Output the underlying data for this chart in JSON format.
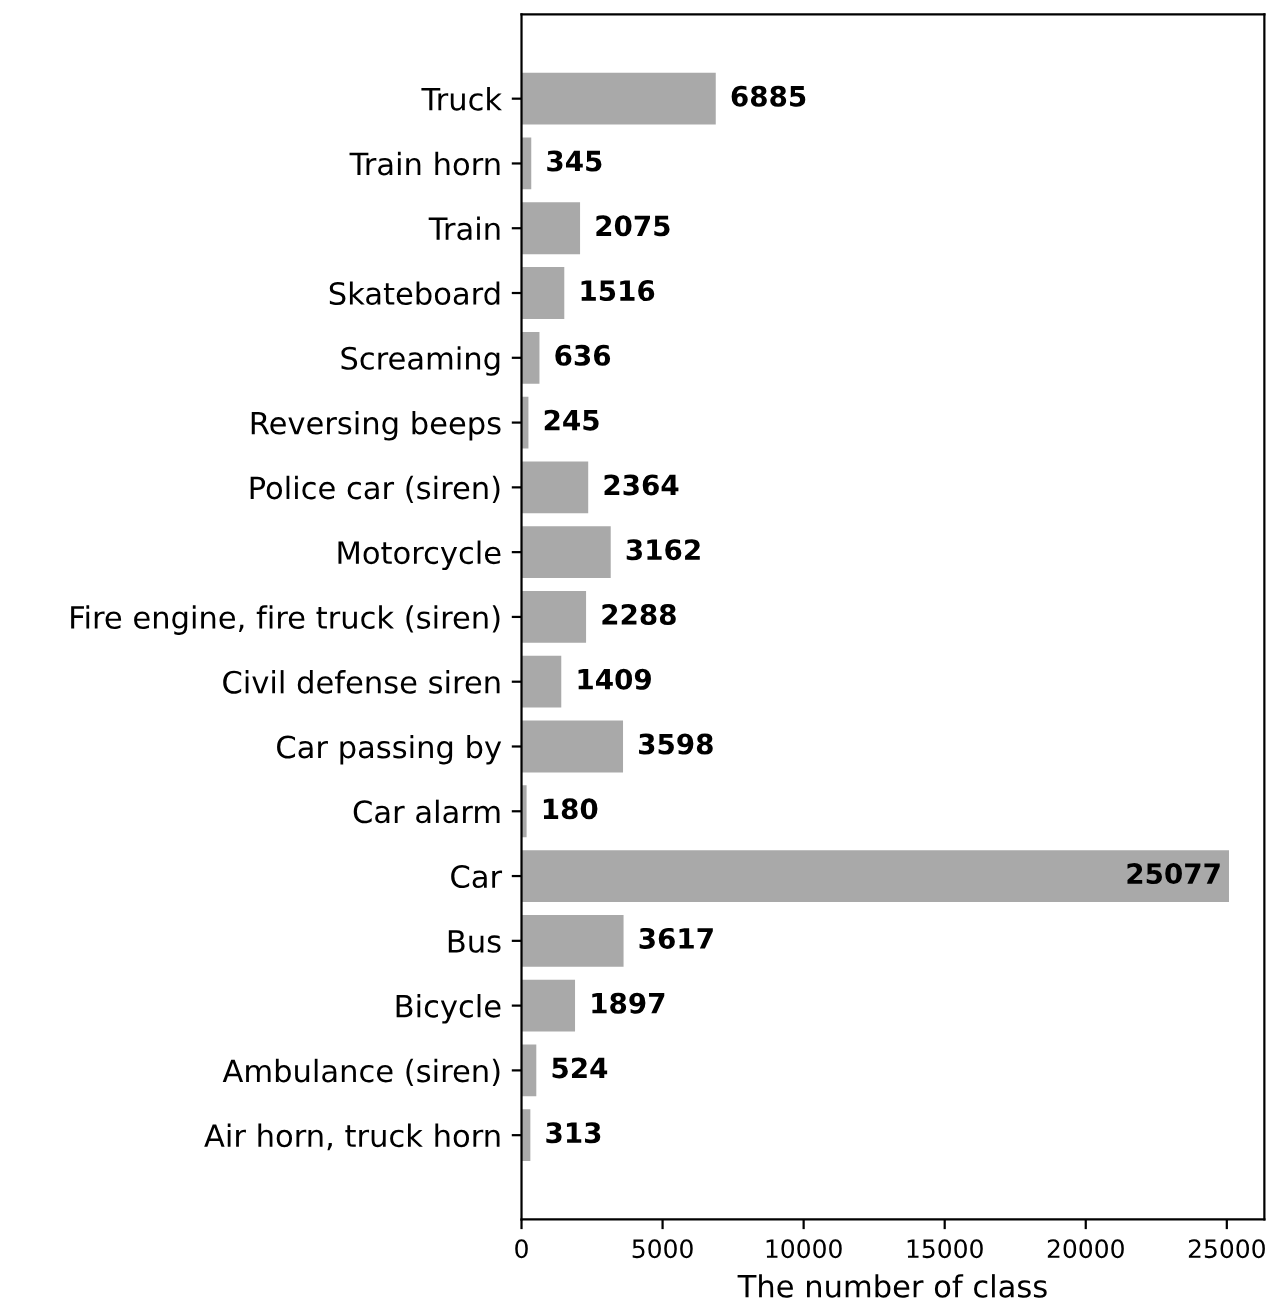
{
  "chart_data": {
    "type": "bar",
    "orientation": "horizontal",
    "xlabel": "The number of class",
    "categories": [
      "Truck",
      "Train horn",
      "Train",
      "Skateboard",
      "Screaming",
      "Reversing beeps",
      "Police car (siren)",
      "Motorcycle",
      "Fire engine, fire truck (siren)",
      "Civil defense siren",
      "Car passing by",
      "Car alarm",
      "Car",
      "Bus",
      "Bicycle",
      "Ambulance (siren)",
      "Air horn, truck horn"
    ],
    "values": [
      6885,
      345,
      2075,
      1516,
      636,
      245,
      2364,
      3162,
      2288,
      1409,
      3598,
      180,
      25077,
      3617,
      1897,
      524,
      313
    ],
    "color": "#a9a9a9",
    "data_labels": true,
    "grid": false,
    "xlim": [
      0,
      26331
    ],
    "xticks": [
      0,
      5000,
      10000,
      15000,
      20000,
      25000
    ]
  }
}
